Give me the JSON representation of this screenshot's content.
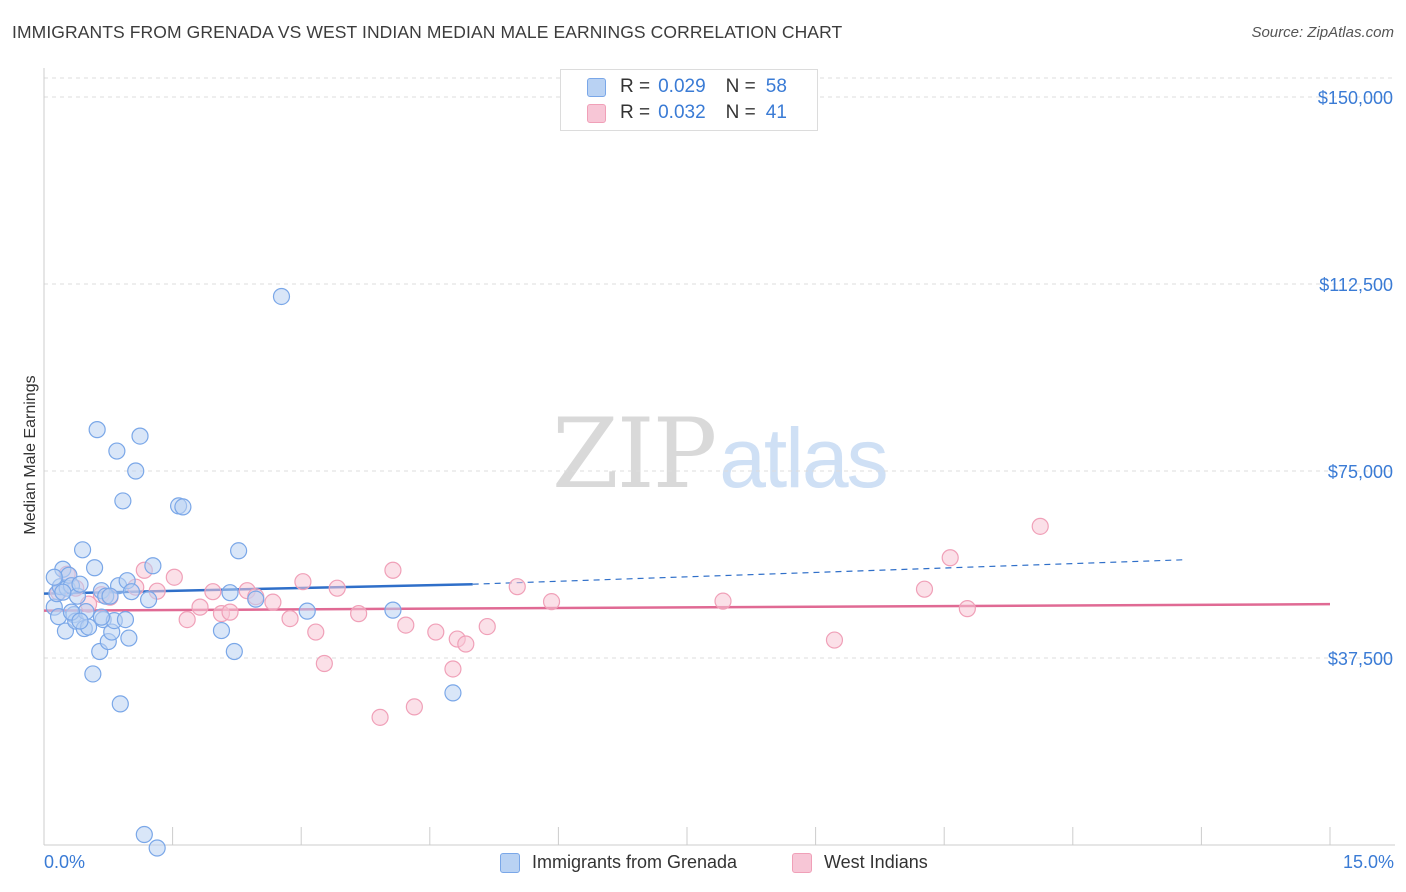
{
  "title": "IMMIGRANTS FROM GRENADA VS WEST INDIAN MEDIAN MALE EARNINGS CORRELATION CHART",
  "source": "Source: ZipAtlas.com",
  "watermark": {
    "zip": "ZIP",
    "atlas": "atlas"
  },
  "colors": {
    "blue": "#7aa7e8",
    "blue_fill": "#b9d2f3",
    "pink": "#f0a0b8",
    "pink_fill": "#f7c6d6",
    "blue_line": "#2f6fc9",
    "pink_line": "#e06a94",
    "accent_text": "#3a7bd5"
  },
  "legend": {
    "rows": [
      {
        "r_label": "R =",
        "r_value": "0.029",
        "n_label": "N =",
        "n_value": "58"
      },
      {
        "r_label": "R =",
        "r_value": "0.032",
        "n_label": "N =",
        "n_value": "41"
      }
    ]
  },
  "bottom_legend": [
    "Immigrants from Grenada",
    "West Indians"
  ],
  "x_axis": {
    "min_label": "0.0%",
    "max_label": "15.0%"
  },
  "chart_data": {
    "type": "scatter",
    "title": "IMMIGRANTS FROM GRENADA VS WEST INDIAN MEDIAN MALE EARNINGS CORRELATION CHART",
    "xlabel": "",
    "ylabel": "Median Male Earnings",
    "xlim": [
      0,
      15
    ],
    "ylim": [
      0,
      153000
    ],
    "yticks": [
      37500,
      75000,
      112500,
      150000
    ],
    "ytick_labels": [
      "$37,500",
      "$75,000",
      "$112,500",
      "$150,000"
    ],
    "series": [
      {
        "name": "Immigrants from Grenada",
        "color": "#7aa7e8",
        "trend": {
          "x0": 0,
          "y0": 50400,
          "x1": 5.0,
          "y1": 52300,
          "dash_x1": 13.3,
          "dash_y1": 57200
        },
        "points": [
          [
            0.05,
            47700
          ],
          [
            0.08,
            50400
          ],
          [
            0.1,
            45800
          ],
          [
            0.12,
            51800
          ],
          [
            0.15,
            55300
          ],
          [
            0.18,
            42900
          ],
          [
            0.2,
            51500
          ],
          [
            0.22,
            54100
          ],
          [
            0.25,
            52000
          ],
          [
            0.28,
            46200
          ],
          [
            0.3,
            44900
          ],
          [
            0.32,
            49900
          ],
          [
            0.35,
            52300
          ],
          [
            0.38,
            59200
          ],
          [
            0.4,
            43400
          ],
          [
            0.42,
            46800
          ],
          [
            0.45,
            43700
          ],
          [
            0.5,
            34300
          ],
          [
            0.52,
            55600
          ],
          [
            0.55,
            83300
          ],
          [
            0.58,
            38800
          ],
          [
            0.6,
            51000
          ],
          [
            0.62,
            45200
          ],
          [
            0.65,
            49900
          ],
          [
            0.68,
            40800
          ],
          [
            0.72,
            42700
          ],
          [
            0.75,
            45000
          ],
          [
            0.78,
            79000
          ],
          [
            0.8,
            52000
          ],
          [
            0.82,
            28300
          ],
          [
            0.85,
            69000
          ],
          [
            0.88,
            45200
          ],
          [
            0.9,
            53000
          ],
          [
            0.92,
            41500
          ],
          [
            0.95,
            50800
          ],
          [
            1.0,
            75000
          ],
          [
            1.05,
            82000
          ],
          [
            1.1,
            2100
          ],
          [
            1.15,
            49200
          ],
          [
            1.2,
            56000
          ],
          [
            1.25,
            -600
          ],
          [
            1.5,
            68000
          ],
          [
            1.55,
            67800
          ],
          [
            2.0,
            43000
          ],
          [
            2.1,
            50600
          ],
          [
            2.15,
            38800
          ],
          [
            2.2,
            59000
          ],
          [
            2.4,
            49300
          ],
          [
            2.7,
            110000
          ],
          [
            3.0,
            46900
          ],
          [
            4.0,
            47100
          ],
          [
            4.7,
            30500
          ],
          [
            0.05,
            53700
          ],
          [
            0.15,
            50700
          ],
          [
            0.25,
            46700
          ],
          [
            0.35,
            44900
          ],
          [
            0.6,
            45700
          ],
          [
            0.7,
            49900
          ]
        ]
      },
      {
        "name": "West Indians",
        "color": "#f0a0b8",
        "trend": {
          "x0": 0,
          "y0": 47000,
          "x1": 15.0,
          "y1": 48300
        },
        "points": [
          [
            0.1,
            50700
          ],
          [
            0.2,
            54300
          ],
          [
            0.3,
            51500
          ],
          [
            0.6,
            50200
          ],
          [
            0.7,
            49700
          ],
          [
            1.0,
            51700
          ],
          [
            1.1,
            55100
          ],
          [
            1.25,
            50900
          ],
          [
            1.45,
            53700
          ],
          [
            1.6,
            45200
          ],
          [
            1.75,
            47700
          ],
          [
            1.9,
            50800
          ],
          [
            2.0,
            46400
          ],
          [
            2.1,
            46700
          ],
          [
            2.3,
            51000
          ],
          [
            2.4,
            49800
          ],
          [
            2.6,
            48700
          ],
          [
            2.8,
            45400
          ],
          [
            2.95,
            52800
          ],
          [
            3.1,
            42700
          ],
          [
            3.2,
            36400
          ],
          [
            3.35,
            51500
          ],
          [
            3.6,
            46400
          ],
          [
            3.85,
            25600
          ],
          [
            4.0,
            55100
          ],
          [
            4.15,
            44100
          ],
          [
            4.25,
            27700
          ],
          [
            4.5,
            42700
          ],
          [
            4.7,
            35300
          ],
          [
            4.75,
            41300
          ],
          [
            4.85,
            40300
          ],
          [
            5.1,
            43800
          ],
          [
            5.45,
            51800
          ],
          [
            5.85,
            48800
          ],
          [
            7.85,
            48900
          ],
          [
            9.15,
            41100
          ],
          [
            10.2,
            51300
          ],
          [
            10.5,
            57600
          ],
          [
            10.7,
            47400
          ],
          [
            11.55,
            63900
          ],
          [
            0.45,
            48300
          ]
        ]
      }
    ]
  }
}
